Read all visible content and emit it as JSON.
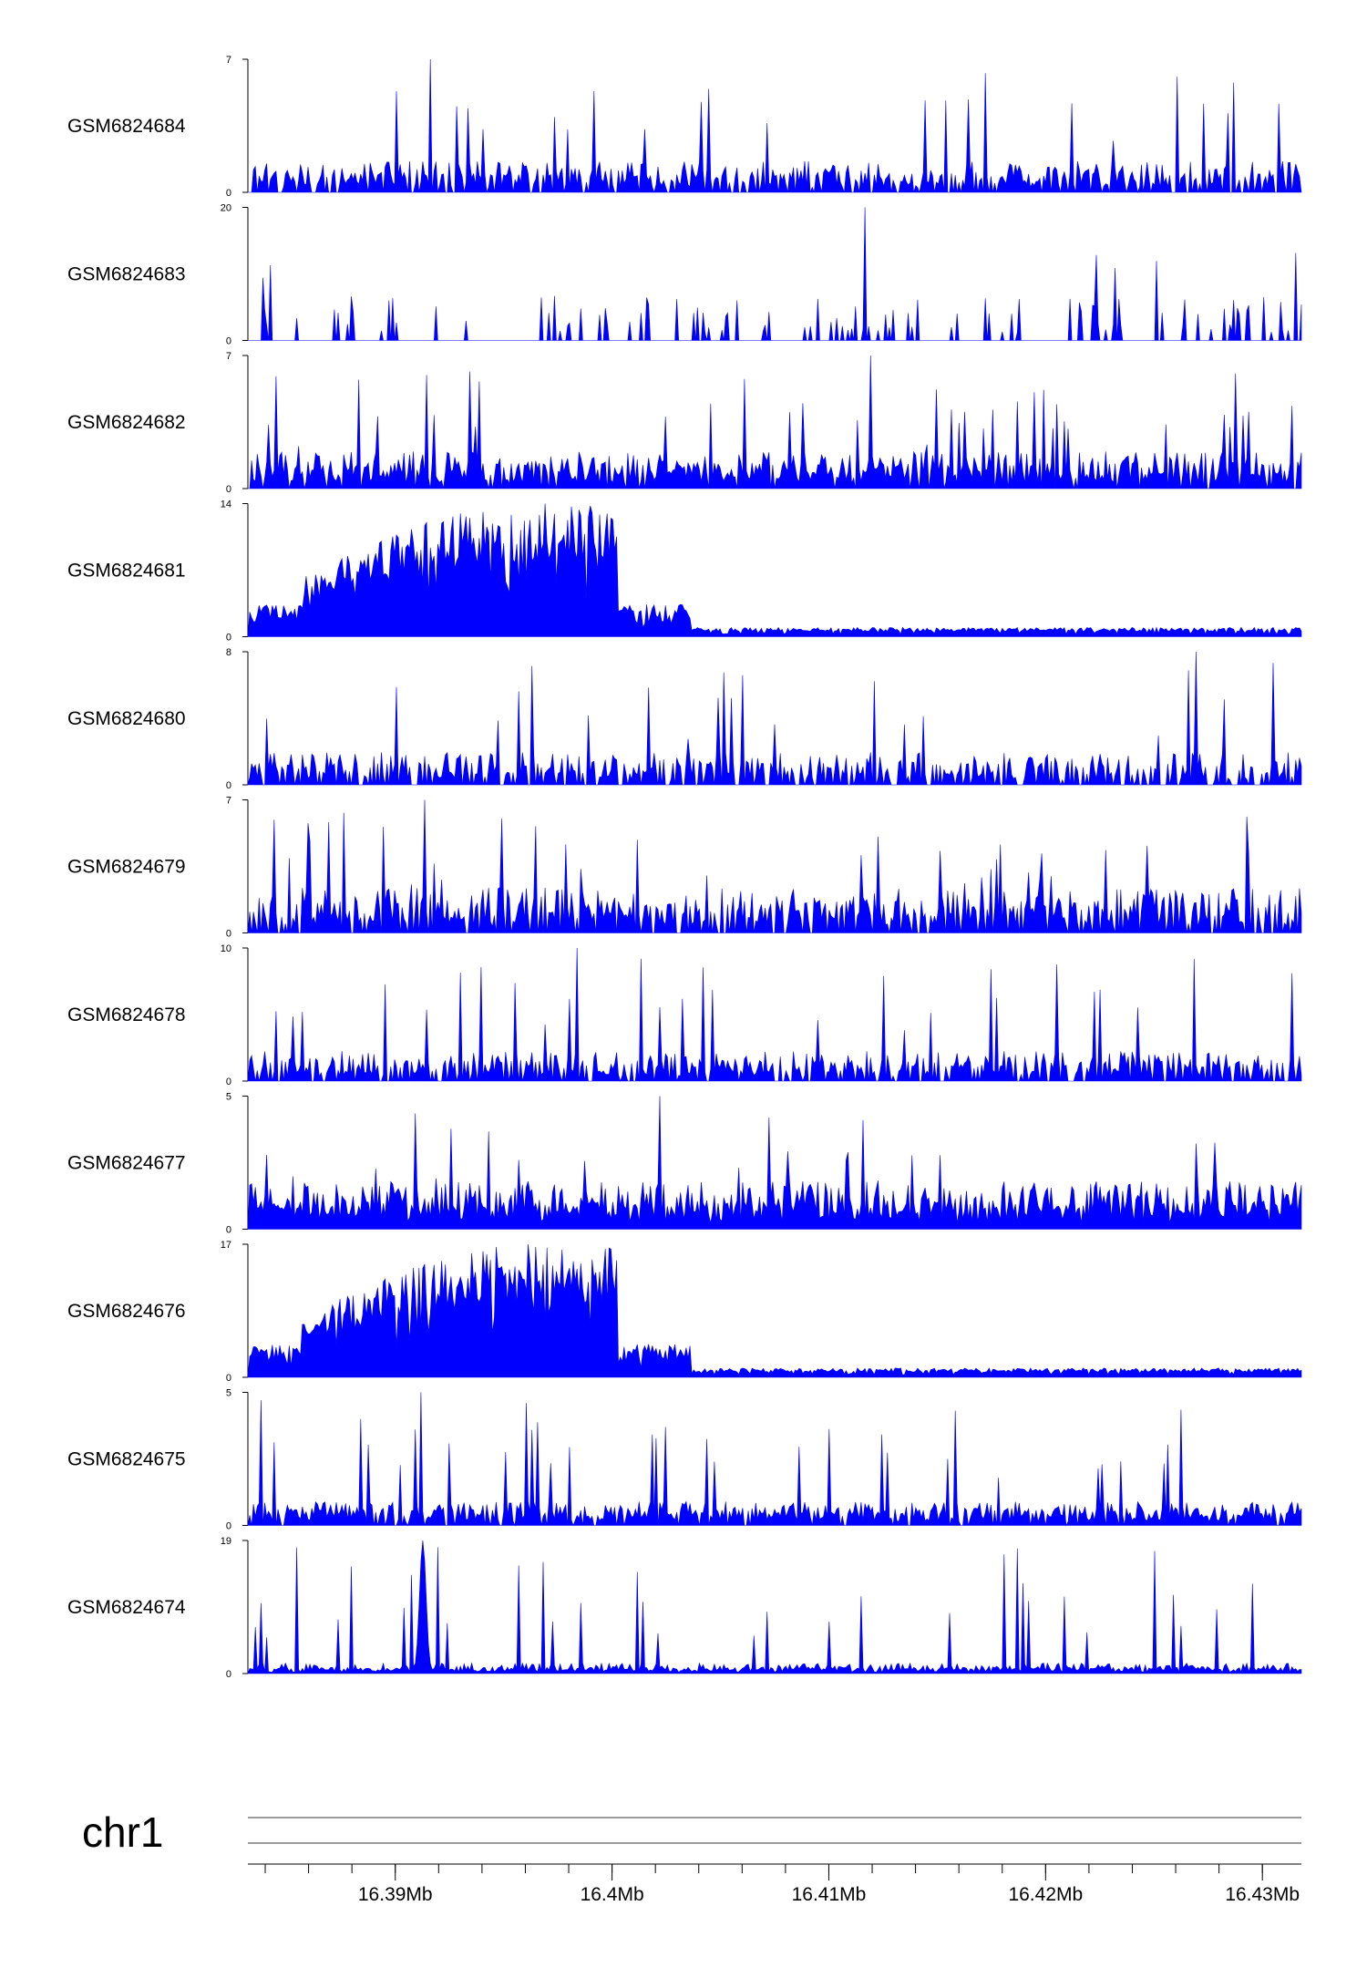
{
  "chart_data": {
    "type": "area",
    "chromosome": "chr1",
    "xrange_mb": [
      16.3832,
      16.4318
    ],
    "genome_axis": {
      "major_ticks": [
        16.39,
        16.4,
        16.41,
        16.42,
        16.43
      ],
      "major_tick_labels": [
        "16.39Mb",
        "16.4Mb",
        "16.41Mb",
        "16.42Mb",
        "16.43Mb"
      ],
      "minor_tick_step_mb": 0.002
    },
    "colors": {
      "fill": "#0000ff",
      "axis": "#000000",
      "ideogram": "#7a7a7a"
    },
    "grid": false,
    "legend": "none",
    "tracks": [
      {
        "name": "GSM6824684",
        "ymin": 0,
        "ymax": 7,
        "peak": 7,
        "base": 1.1,
        "density": 0.75,
        "width": 0.75,
        "profile": "uniform"
      },
      {
        "name": "GSM6824683",
        "ymin": 0,
        "ymax": 20,
        "peak": 20,
        "base": 4.5,
        "density": 0.4,
        "width": 0.85,
        "profile": "sparse"
      },
      {
        "name": "GSM6824682",
        "ymin": 0,
        "ymax": 7,
        "peak": 7,
        "base": 1.3,
        "density": 0.9,
        "width": 0.7,
        "profile": "uniform"
      },
      {
        "name": "GSM6824681",
        "ymin": 0,
        "ymax": 14,
        "peak": 14,
        "base": 1.0,
        "density": 1.0,
        "width": 0.55,
        "profile": "enriched"
      },
      {
        "name": "GSM6824680",
        "ymin": 0,
        "ymax": 8,
        "peak": 8,
        "base": 1.3,
        "density": 0.7,
        "width": 0.7,
        "profile": "uniform"
      },
      {
        "name": "GSM6824679",
        "ymin": 0,
        "ymax": 7,
        "peak": 7,
        "base": 1.6,
        "density": 0.8,
        "width": 0.7,
        "profile": "uniform"
      },
      {
        "name": "GSM6824678",
        "ymin": 0,
        "ymax": 10,
        "peak": 10,
        "base": 1.5,
        "density": 0.75,
        "width": 0.7,
        "profile": "uniform"
      },
      {
        "name": "GSM6824677",
        "ymin": 0,
        "ymax": 5,
        "peak": 5,
        "base": 1.2,
        "density": 1.0,
        "width": 0.6,
        "profile": "uniform"
      },
      {
        "name": "GSM6824676",
        "ymin": 0,
        "ymax": 17,
        "peak": 17,
        "base": 0.9,
        "density": 1.0,
        "width": 0.55,
        "profile": "enriched"
      },
      {
        "name": "GSM6824675",
        "ymin": 0,
        "ymax": 5,
        "peak": 5,
        "base": 0.6,
        "density": 0.85,
        "width": 0.75,
        "profile": "uniform"
      },
      {
        "name": "GSM6824674",
        "ymin": 0,
        "ymax": 19,
        "peak": 19,
        "base": 1.0,
        "density": 1.0,
        "width": 0.6,
        "profile": "spike"
      }
    ]
  }
}
